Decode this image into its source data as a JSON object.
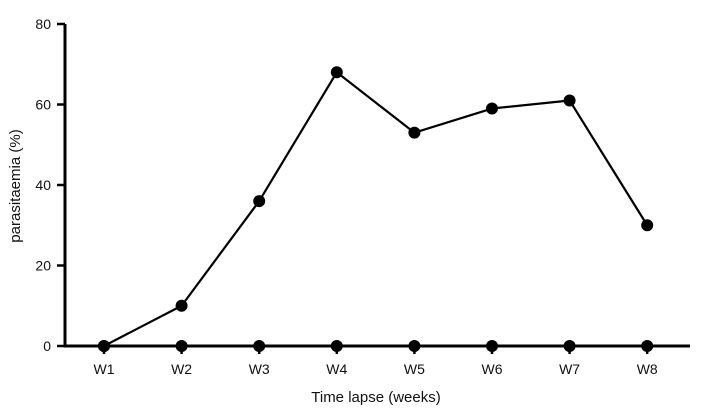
{
  "chart_data": {
    "type": "line",
    "title": "",
    "xlabel": "Time lapse (weeks)",
    "ylabel": "parasitaemia (%)",
    "categories": [
      "W1",
      "W2",
      "W3",
      "W4",
      "W5",
      "W6",
      "W7",
      "W8"
    ],
    "ylim": [
      0,
      80
    ],
    "yticks": [
      0,
      20,
      40,
      60,
      80
    ],
    "grid": false,
    "series": [
      {
        "values": [
          0,
          10,
          36,
          68,
          53,
          59,
          61,
          30
        ]
      },
      {
        "values": [
          0,
          0,
          0,
          0,
          0,
          0,
          0,
          0
        ]
      }
    ],
    "colors": {
      "line": "#000000",
      "marker": "#000000",
      "axis": "#000000"
    }
  }
}
